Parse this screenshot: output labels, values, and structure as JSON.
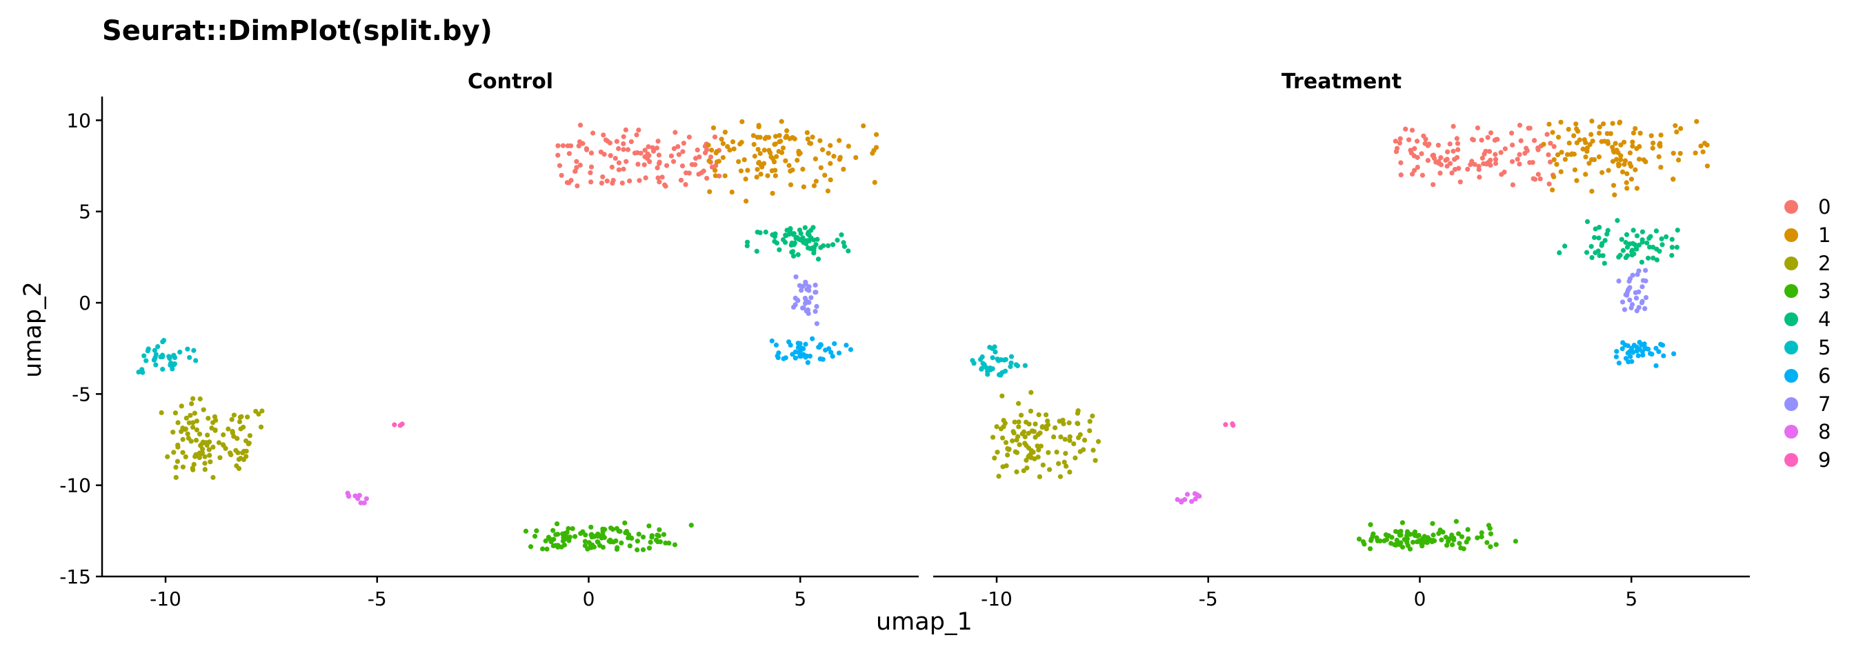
{
  "title": "Seurat::DimPlot(split.by)",
  "chart_data": {
    "type": "scatter",
    "title": "Seurat::DimPlot(split.by)",
    "xlabel": "umap_1",
    "ylabel": "umap_2",
    "xlim": [
      -11.5,
      7.8
    ],
    "ylim": [
      -15.0,
      11.3
    ],
    "xticks": [
      -10,
      -5,
      0,
      5
    ],
    "yticks": [
      10,
      5,
      0,
      -5,
      -10,
      -15
    ],
    "grid": false,
    "legend_position": "right",
    "panels": [
      {
        "name": "Control",
        "clusters": [
          {
            "id": "0",
            "points": 120,
            "cx": 1.0,
            "cy": 7.8,
            "sx": 1.6,
            "sy": 1.0,
            "x_range": [
              -0.8,
              3.2
            ],
            "y_range": [
              6.3,
              9.8
            ]
          },
          {
            "id": "1",
            "points": 120,
            "cx": 4.3,
            "cy": 8.2,
            "sx": 1.5,
            "sy": 1.0,
            "x_range": [
              2.8,
              6.8
            ],
            "y_range": [
              5.5,
              10.0
            ]
          },
          {
            "id": "2",
            "points": 110,
            "cx": -9.0,
            "cy": -7.8,
            "sx": 0.8,
            "sy": 1.2,
            "x_range": [
              -10.1,
              -7.5
            ],
            "y_range": [
              -9.6,
              -4.9
            ]
          },
          {
            "id": "3",
            "points": 110,
            "cx": 0.2,
            "cy": -12.9,
            "sx": 1.1,
            "sy": 0.35,
            "x_range": [
              -1.5,
              2.5
            ],
            "y_range": [
              -13.6,
              -10.8
            ]
          },
          {
            "id": "4",
            "points": 70,
            "cx": 5.0,
            "cy": 3.3,
            "sx": 0.6,
            "sy": 0.5,
            "x_range": [
              2.8,
              6.2
            ],
            "y_range": [
              2.2,
              5.8
            ]
          },
          {
            "id": "5",
            "points": 35,
            "cx": -10.0,
            "cy": -3.0,
            "sx": 0.45,
            "sy": 0.5,
            "x_range": [
              -10.7,
              -9.2
            ],
            "y_range": [
              -4.4,
              -2.0
            ]
          },
          {
            "id": "6",
            "points": 45,
            "cx": 5.0,
            "cy": -2.6,
            "sx": 0.5,
            "sy": 0.35,
            "x_range": [
              4.3,
              6.3
            ],
            "y_range": [
              -3.4,
              -1.9
            ]
          },
          {
            "id": "7",
            "points": 30,
            "cx": 5.1,
            "cy": 0.2,
            "sx": 0.25,
            "sy": 0.7,
            "x_range": [
              4.8,
              5.4
            ],
            "y_range": [
              -1.2,
              1.8
            ]
          },
          {
            "id": "8",
            "points": 10,
            "cx": -5.6,
            "cy": -10.6,
            "sx": 0.2,
            "sy": 0.2,
            "x_range": [
              -5.8,
              -5.2
            ],
            "y_range": [
              -11.0,
              -10.3
            ]
          },
          {
            "id": "9",
            "points": 3,
            "cx": -4.5,
            "cy": -6.7,
            "sx": 0.05,
            "sy": 0.05,
            "x_range": [
              -4.6,
              -4.4
            ],
            "y_range": [
              -6.8,
              -6.6
            ]
          }
        ]
      },
      {
        "name": "Treatment",
        "clusters": [
          {
            "id": "0",
            "points": 120,
            "cx": 1.1,
            "cy": 7.9,
            "sx": 1.5,
            "sy": 1.0,
            "x_range": [
              -0.6,
              3.2
            ],
            "y_range": [
              6.4,
              9.8
            ]
          },
          {
            "id": "1",
            "points": 120,
            "cx": 4.4,
            "cy": 8.3,
            "sx": 1.4,
            "sy": 1.0,
            "x_range": [
              2.8,
              6.8
            ],
            "y_range": [
              5.7,
              10.0
            ]
          },
          {
            "id": "2",
            "points": 110,
            "cx": -9.0,
            "cy": -7.8,
            "sx": 0.8,
            "sy": 1.2,
            "x_range": [
              -10.1,
              -7.5
            ],
            "y_range": [
              -9.6,
              -4.9
            ]
          },
          {
            "id": "3",
            "points": 100,
            "cx": 0.0,
            "cy": -13.0,
            "sx": 1.0,
            "sy": 0.35,
            "x_range": [
              -1.5,
              2.4
            ],
            "y_range": [
              -13.6,
              -10.8
            ]
          },
          {
            "id": "4",
            "points": 65,
            "cx": 5.0,
            "cy": 3.2,
            "sx": 0.7,
            "sy": 0.5,
            "x_range": [
              3.2,
              6.2
            ],
            "y_range": [
              2.1,
              6.0
            ]
          },
          {
            "id": "5",
            "points": 35,
            "cx": -10.0,
            "cy": -3.2,
            "sx": 0.45,
            "sy": 0.5,
            "x_range": [
              -10.7,
              -9.2
            ],
            "y_range": [
              -4.5,
              -2.0
            ]
          },
          {
            "id": "6",
            "points": 40,
            "cx": 5.0,
            "cy": -2.7,
            "sx": 0.35,
            "sy": 0.35,
            "x_range": [
              4.5,
              6.3
            ],
            "y_range": [
              -3.5,
              -2.0
            ]
          },
          {
            "id": "7",
            "points": 30,
            "cx": 5.0,
            "cy": 0.3,
            "sx": 0.25,
            "sy": 0.7,
            "x_range": [
              4.7,
              5.4
            ],
            "y_range": [
              -1.0,
              1.8
            ]
          },
          {
            "id": "8",
            "points": 10,
            "cx": -5.5,
            "cy": -10.7,
            "sx": 0.2,
            "sy": 0.2,
            "x_range": [
              -5.8,
              -5.2
            ],
            "y_range": [
              -11.0,
              -10.4
            ]
          },
          {
            "id": "9",
            "points": 3,
            "cx": -4.5,
            "cy": -6.7,
            "sx": 0.05,
            "sy": 0.05,
            "x_range": [
              -4.6,
              -4.4
            ],
            "y_range": [
              -6.8,
              -6.6
            ]
          }
        ]
      }
    ],
    "legend": [
      {
        "label": "0",
        "color": "#F8766D"
      },
      {
        "label": "1",
        "color": "#D89000"
      },
      {
        "label": "2",
        "color": "#A3A500"
      },
      {
        "label": "3",
        "color": "#39B600"
      },
      {
        "label": "4",
        "color": "#00BF7D"
      },
      {
        "label": "5",
        "color": "#00BFC4"
      },
      {
        "label": "6",
        "color": "#00B0F6"
      },
      {
        "label": "7",
        "color": "#9590FF"
      },
      {
        "label": "8",
        "color": "#E76BF3"
      },
      {
        "label": "9",
        "color": "#FF62BC"
      }
    ]
  }
}
